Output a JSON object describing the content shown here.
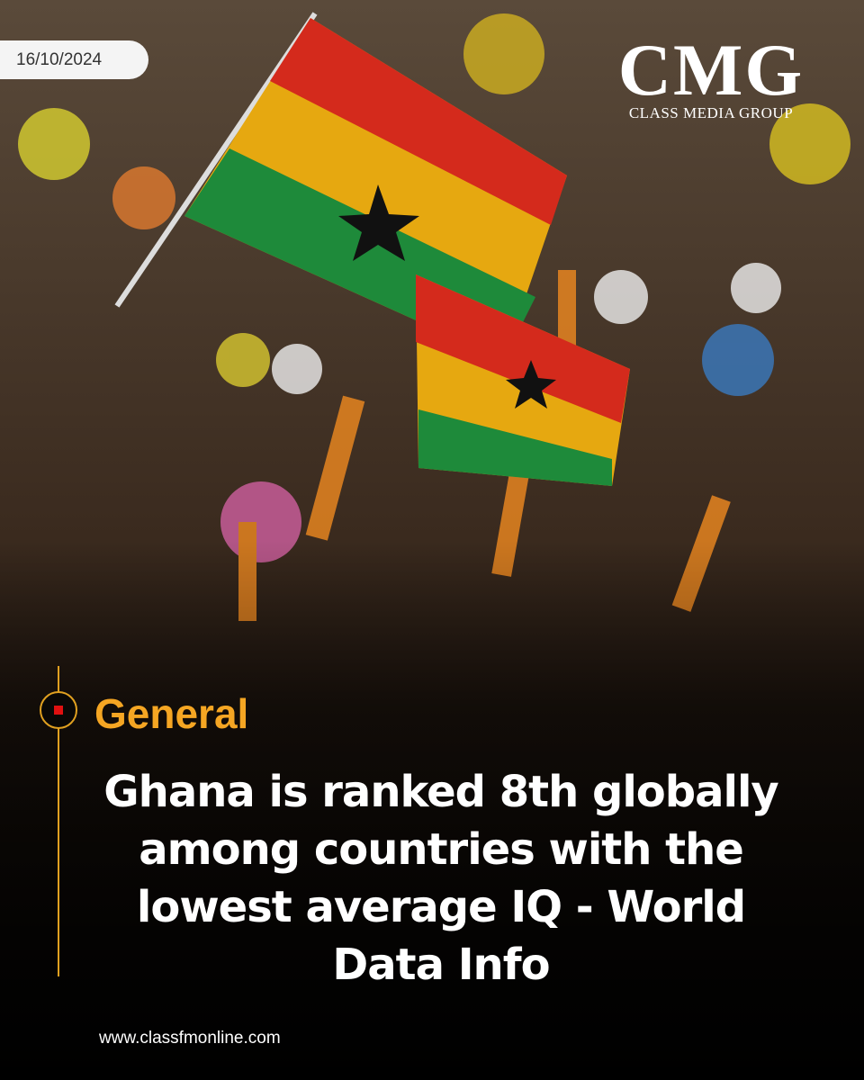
{
  "date": "16/10/2024",
  "logo": {
    "name": "CMG",
    "subtitle": "CLASS MEDIA GROUP"
  },
  "category": "General",
  "headline": "Ghana is ranked 8th globally among countries with the lowest average IQ - World Data Info",
  "website": "www.classfmonline.com"
}
